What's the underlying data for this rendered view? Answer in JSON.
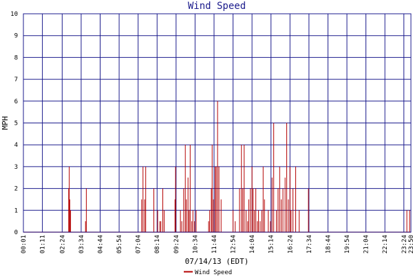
{
  "chart_data": {
    "type": "line",
    "title": "Wind Speed",
    "xlabel": "07/14/13 (EDT)",
    "ylabel": "MPH",
    "ylim": [
      0,
      10
    ],
    "y_ticks": [
      "0",
      "1",
      "2",
      "3",
      "4",
      "5",
      "6",
      "7",
      "8",
      "9",
      "10"
    ],
    "x_tick_labels": [
      "00:01",
      "01:11",
      "02:24",
      "03:34",
      "04:44",
      "05:54",
      "07:04",
      "08:14",
      "09:24",
      "10:34",
      "11:44",
      "12:54",
      "14:04",
      "15:14",
      "16:24",
      "17:34",
      "18:44",
      "19:54",
      "21:04",
      "22:14",
      "23:24",
      "23:50"
    ],
    "grid": true,
    "legend_position": "bottom-center",
    "series": [
      {
        "name": "Wind Speed",
        "color": "#b40000",
        "x": [
          "02:48",
          "02:50",
          "02:52",
          "02:55",
          "03:50",
          "03:53",
          "07:17",
          "07:22",
          "07:28",
          "07:32",
          "08:02",
          "08:16",
          "08:24",
          "08:28",
          "08:35",
          "08:40",
          "09:20",
          "09:22",
          "09:40",
          "09:45",
          "09:52",
          "09:58",
          "10:02",
          "10:08",
          "10:12",
          "10:16",
          "10:22",
          "10:26",
          "10:32",
          "10:38",
          "11:24",
          "11:28",
          "11:34",
          "11:37",
          "11:42",
          "11:48",
          "11:52",
          "11:57",
          "12:02",
          "12:10",
          "12:54",
          "13:02",
          "13:18",
          "13:25",
          "13:30",
          "13:35",
          "13:42",
          "13:48",
          "13:52",
          "13:58",
          "14:04",
          "14:08",
          "14:13",
          "14:18",
          "14:24",
          "14:28",
          "14:34",
          "14:40",
          "14:45",
          "14:50",
          "15:04",
          "15:12",
          "15:18",
          "15:24",
          "15:34",
          "15:40",
          "15:46",
          "15:52",
          "15:58",
          "16:06",
          "16:12",
          "16:18",
          "16:24",
          "16:28",
          "16:35",
          "16:45",
          "16:58",
          "17:32",
          "23:35",
          "23:45"
        ],
        "y": [
          2,
          3,
          1.5,
          1,
          0.5,
          2,
          1.5,
          3,
          1.5,
          3,
          2,
          1,
          0.5,
          0.5,
          2,
          1,
          1.5,
          3,
          1,
          0.5,
          2,
          4,
          1.5,
          2.5,
          1,
          4,
          0.5,
          1,
          0.5,
          1,
          0.5,
          1,
          2,
          4,
          1.5,
          3,
          3,
          6,
          3,
          1.5,
          1,
          0.5,
          2,
          4,
          2,
          4,
          1,
          0.5,
          1.5,
          2,
          3,
          2,
          1,
          2,
          0.5,
          1,
          0.5,
          1,
          3,
          1.5,
          1,
          0.5,
          2.5,
          5,
          1,
          2,
          3,
          1.5,
          2,
          2.5,
          5,
          1.5,
          3,
          1,
          2,
          3,
          1,
          2,
          1,
          1
        ]
      }
    ]
  }
}
